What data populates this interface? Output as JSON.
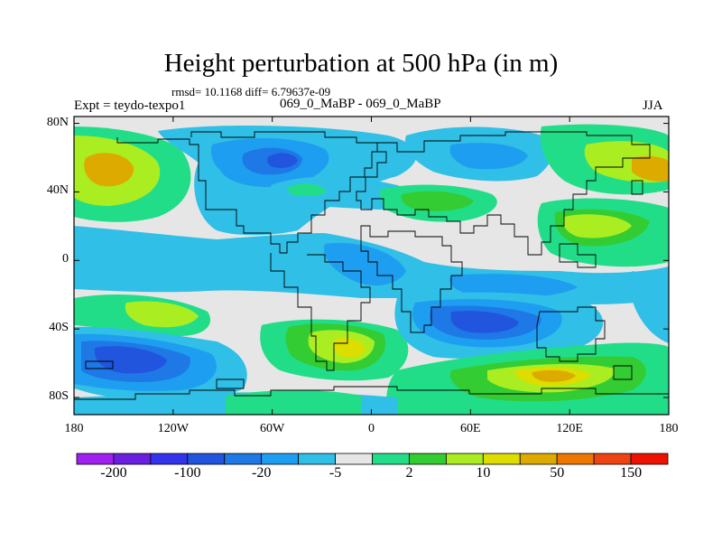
{
  "title": "Height perturbation at 500 hPa (in m)",
  "stats_line": "rmsd= 10.1168  diff= 6.79637e-09",
  "left_label": "Expt = teydo-texpo1",
  "center_label": "069_0_MaBP - 069_0_MaBP",
  "right_label": "JJA",
  "y_axis": {
    "ticks": [
      {
        "label": "80N",
        "lat": 80
      },
      {
        "label": "40N",
        "lat": 40
      },
      {
        "label": "0",
        "lat": 0
      },
      {
        "label": "40S",
        "lat": -40
      },
      {
        "label": "80S",
        "lat": -80
      }
    ]
  },
  "x_axis": {
    "ticks": [
      {
        "label": "180",
        "lon": -180
      },
      {
        "label": "120W",
        "lon": -120
      },
      {
        "label": "60W",
        "lon": -60
      },
      {
        "label": "0",
        "lon": 0
      },
      {
        "label": "60E",
        "lon": 60
      },
      {
        "label": "120E",
        "lon": 120
      },
      {
        "label": "180",
        "lon": 180
      }
    ]
  },
  "colorbar": {
    "colors": [
      "#a020f0",
      "#6a1ee0",
      "#3333ee",
      "#2255dd",
      "#1e78e6",
      "#1e9ef0",
      "#30bfe6",
      "#e6e6e6",
      "#22dd88",
      "#33cc33",
      "#aaee22",
      "#dddd00",
      "#ddaa00",
      "#ee7700",
      "#ee4411",
      "#ee1100"
    ],
    "labels": [
      {
        "text": "-200",
        "boundary": 2
      },
      {
        "text": "-100",
        "boundary": 4
      },
      {
        "text": "-20",
        "boundary": 6
      },
      {
        "text": "-5",
        "boundary": 8
      },
      {
        "text": "2",
        "boundary": 10
      },
      {
        "text": "10",
        "boundary": 12
      },
      {
        "text": "50",
        "boundary": 14
      },
      {
        "text": "150",
        "boundary": 16
      }
    ]
  },
  "field_colors": {
    "neutral": "#e6e6e6",
    "pos1": "#22dd88",
    "pos2": "#33cc33",
    "pos3": "#aaee22",
    "pos4": "#dddd00",
    "pos5": "#ddaa00",
    "neg1": "#30bfe6",
    "neg2": "#1e9ef0",
    "neg3": "#1e78e6",
    "neg4": "#2255dd"
  }
}
